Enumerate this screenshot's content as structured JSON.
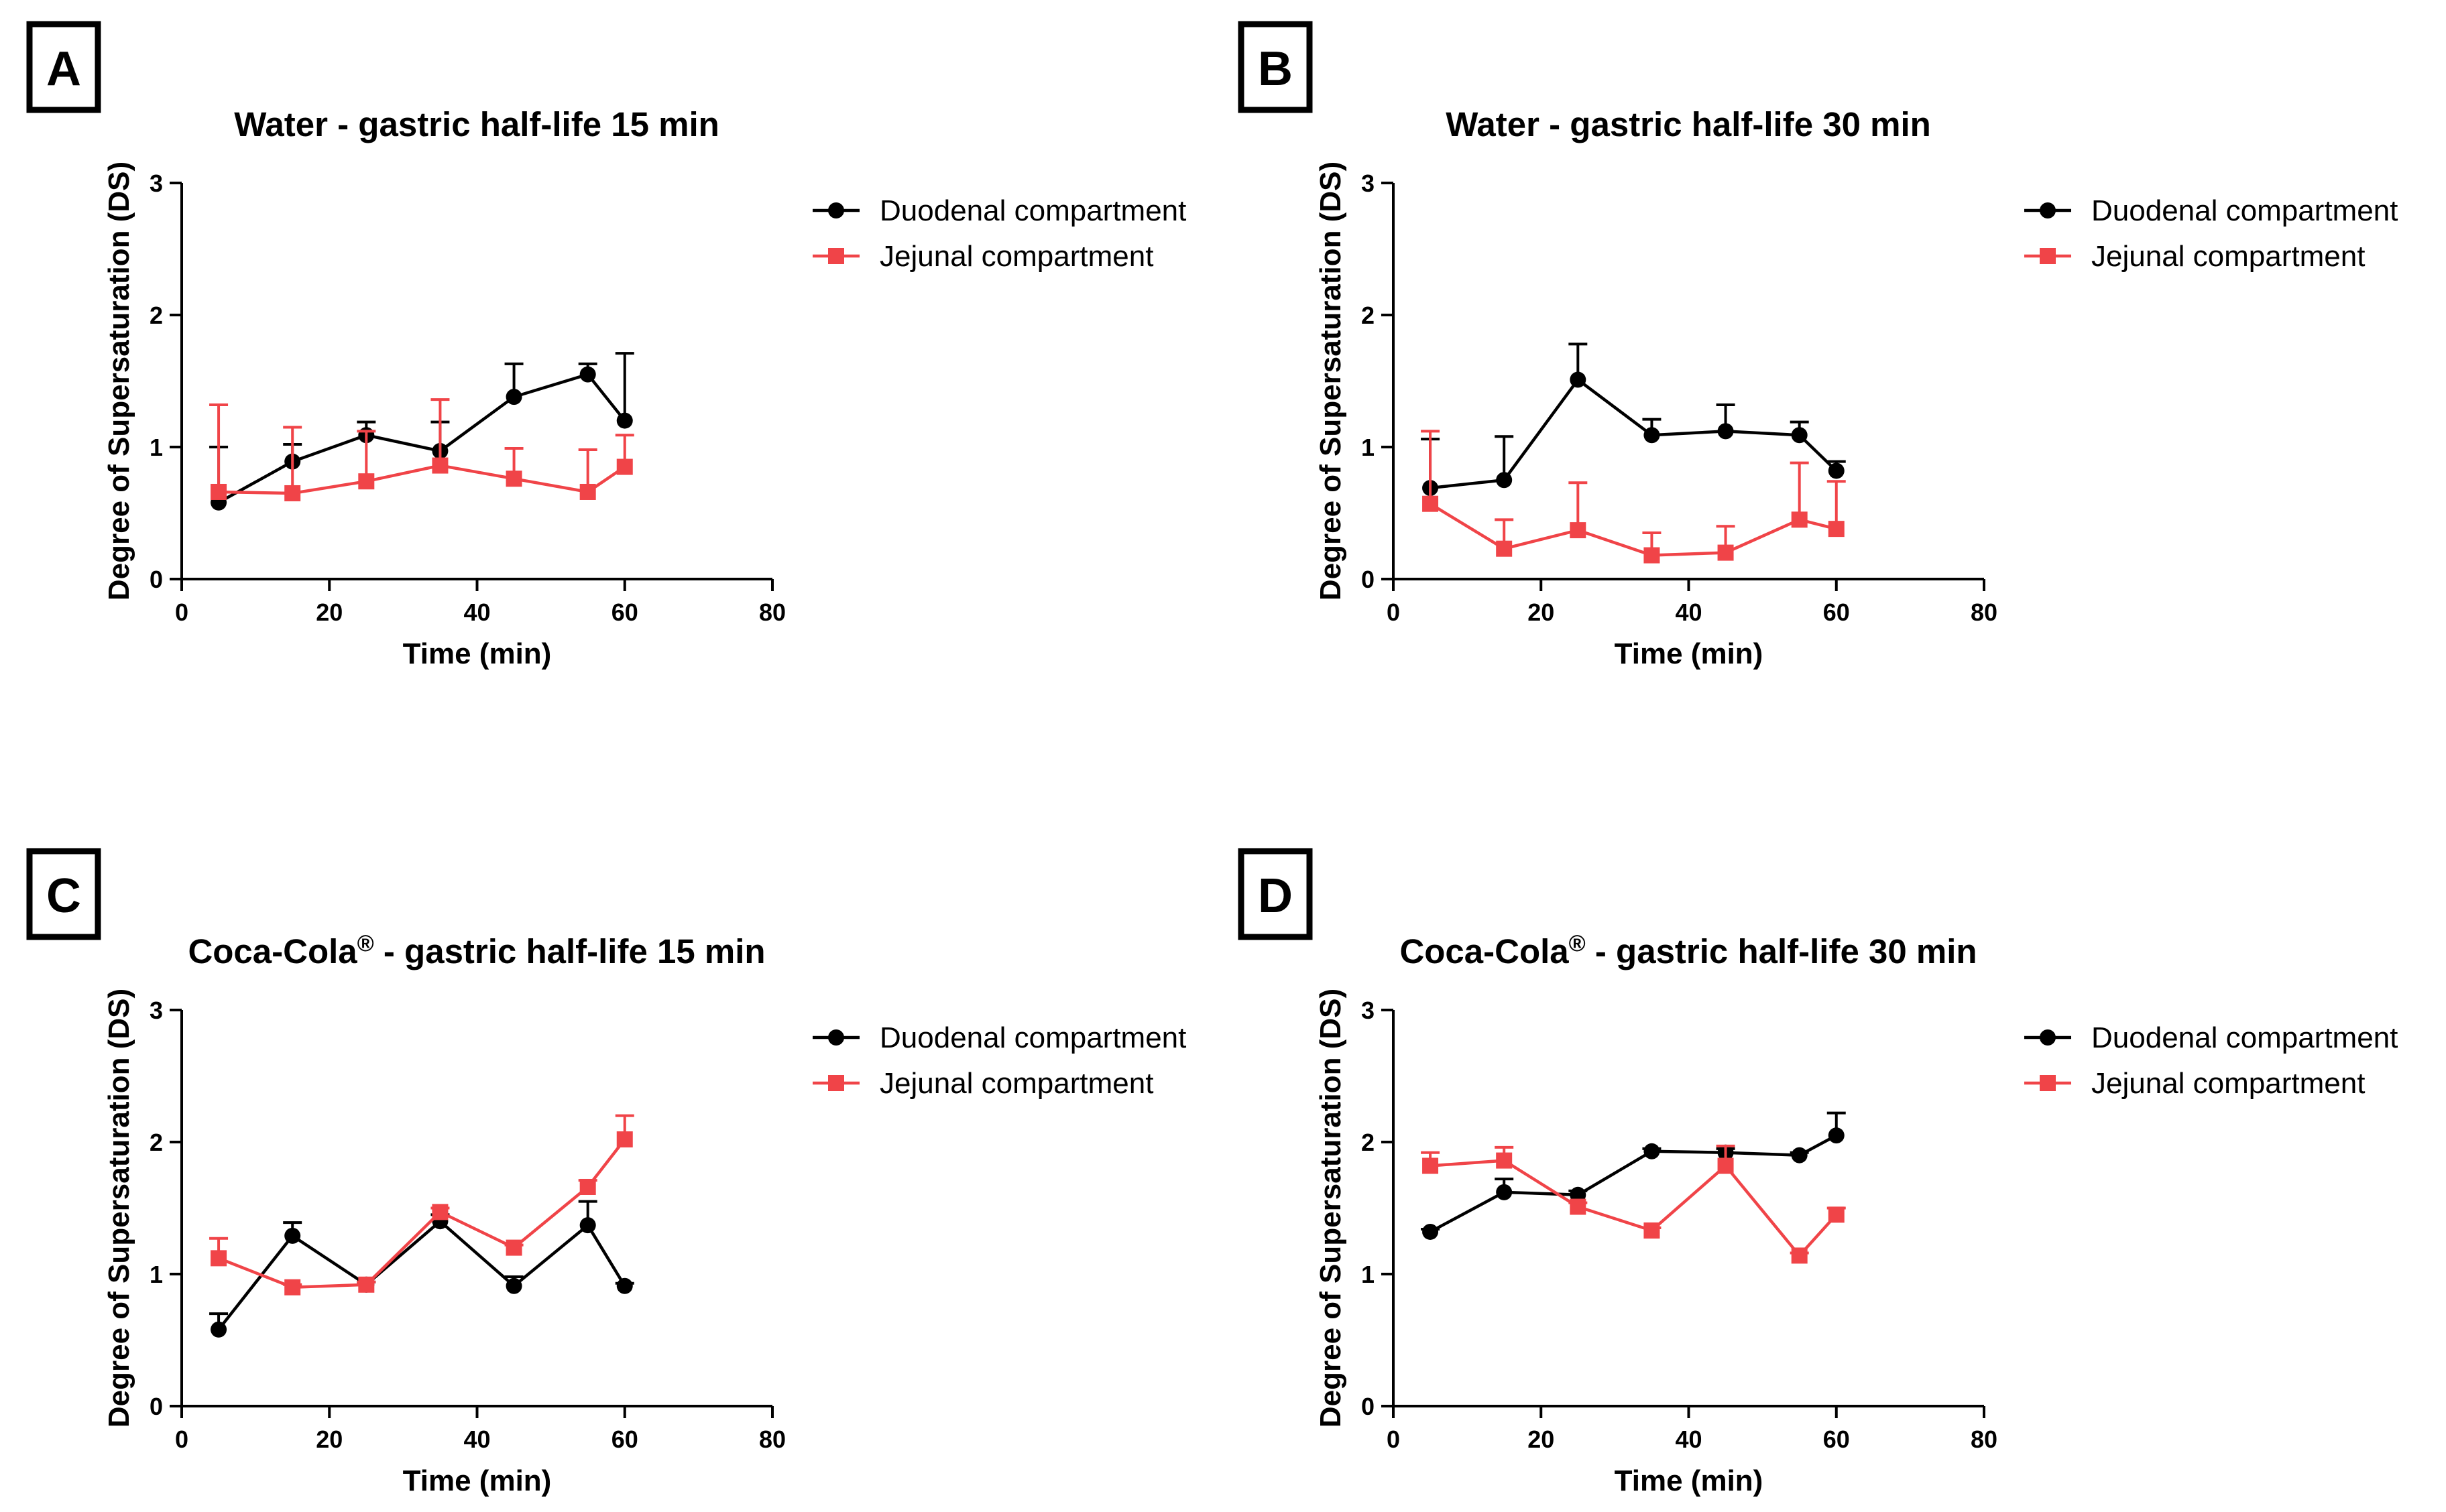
{
  "colors": {
    "duodenal": "#000000",
    "jejunal": "#f04448",
    "axis": "#000000",
    "background": "#ffffff"
  },
  "chart_data": [
    {
      "panel": "A",
      "type": "line",
      "title": "Water - gastric half-life 15 min",
      "xlabel": "Time (min)",
      "ylabel": "Degree of Supersaturation (DS)",
      "xlim": [
        0,
        80
      ],
      "ylim": [
        0,
        3
      ],
      "xticks": [
        0,
        20,
        40,
        60,
        80
      ],
      "yticks": [
        0,
        1,
        2,
        3
      ],
      "legend": "right",
      "series": [
        {
          "name": "Duodenal compartment",
          "marker": "circle",
          "color": "#000000",
          "x": [
            5,
            15,
            25,
            35,
            45,
            55,
            60
          ],
          "y": [
            0.58,
            0.89,
            1.09,
            0.97,
            1.38,
            1.55,
            1.2
          ],
          "err": [
            0.42,
            0.13,
            0.1,
            0.22,
            0.25,
            0.08,
            0.51
          ]
        },
        {
          "name": "Jejunal compartment",
          "marker": "square",
          "color": "#f04448",
          "x": [
            5,
            15,
            25,
            35,
            45,
            55,
            60
          ],
          "y": [
            0.66,
            0.65,
            0.74,
            0.86,
            0.76,
            0.66,
            0.85
          ],
          "err": [
            0.66,
            0.5,
            0.38,
            0.5,
            0.23,
            0.32,
            0.24
          ]
        }
      ]
    },
    {
      "panel": "B",
      "type": "line",
      "title": "Water - gastric half-life 30 min",
      "xlabel": "Time (min)",
      "ylabel": "Degree of Supersaturation (DS)",
      "xlim": [
        0,
        80
      ],
      "ylim": [
        0,
        3
      ],
      "xticks": [
        0,
        20,
        40,
        60,
        80
      ],
      "yticks": [
        0,
        1,
        2,
        3
      ],
      "legend": "right",
      "series": [
        {
          "name": "Duodenal compartment",
          "marker": "circle",
          "color": "#000000",
          "x": [
            5,
            15,
            25,
            35,
            45,
            55,
            60
          ],
          "y": [
            0.69,
            0.75,
            1.51,
            1.09,
            1.12,
            1.09,
            0.82
          ],
          "err": [
            0.37,
            0.33,
            0.27,
            0.12,
            0.2,
            0.1,
            0.07
          ]
        },
        {
          "name": "Jejunal compartment",
          "marker": "square",
          "color": "#f04448",
          "x": [
            5,
            15,
            25,
            35,
            45,
            55,
            60
          ],
          "y": [
            0.57,
            0.23,
            0.37,
            0.18,
            0.2,
            0.45,
            0.38
          ],
          "err": [
            0.55,
            0.22,
            0.36,
            0.17,
            0.2,
            0.43,
            0.36
          ]
        }
      ]
    },
    {
      "panel": "C",
      "type": "line",
      "title": "Coca-Cola® - gastric half-life 15 min",
      "xlabel": "Time (min)",
      "ylabel": "Degree of Supersaturation (DS)",
      "xlim": [
        0,
        80
      ],
      "ylim": [
        0,
        3
      ],
      "xticks": [
        0,
        20,
        40,
        60,
        80
      ],
      "yticks": [
        0,
        1,
        2,
        3
      ],
      "legend": "right",
      "series": [
        {
          "name": "Duodenal compartment",
          "marker": "circle",
          "color": "#000000",
          "x": [
            5,
            15,
            25,
            35,
            45,
            55,
            60
          ],
          "y": [
            0.58,
            1.29,
            0.92,
            1.4,
            0.91,
            1.37,
            0.91
          ],
          "err": [
            0.12,
            0.1,
            0.02,
            0.05,
            0.07,
            0.18,
            0.02
          ]
        },
        {
          "name": "Jejunal compartment",
          "marker": "square",
          "color": "#f04448",
          "x": [
            5,
            15,
            25,
            35,
            45,
            55,
            60
          ],
          "y": [
            1.12,
            0.9,
            0.92,
            1.47,
            1.2,
            1.66,
            2.02
          ],
          "err": [
            0.15,
            0.02,
            0.02,
            0.03,
            0.02,
            0.05,
            0.18
          ]
        }
      ]
    },
    {
      "panel": "D",
      "type": "line",
      "title": "Coca-Cola® - gastric half-life 30 min",
      "xlabel": "Time (min)",
      "ylabel": "Degree of Supersaturation (DS)",
      "xlim": [
        0,
        80
      ],
      "ylim": [
        0,
        3
      ],
      "xticks": [
        0,
        20,
        40,
        60,
        80
      ],
      "yticks": [
        0,
        1,
        2,
        3
      ],
      "legend": "right",
      "series": [
        {
          "name": "Duodenal compartment",
          "marker": "circle",
          "color": "#000000",
          "x": [
            5,
            15,
            25,
            35,
            45,
            55,
            60
          ],
          "y": [
            1.32,
            1.62,
            1.6,
            1.93,
            1.92,
            1.9,
            2.05
          ],
          "err": [
            0.02,
            0.1,
            0.03,
            0.02,
            0.03,
            0.02,
            0.17
          ]
        },
        {
          "name": "Jejunal compartment",
          "marker": "square",
          "color": "#f04448",
          "x": [
            5,
            15,
            25,
            35,
            45,
            55,
            60
          ],
          "y": [
            1.82,
            1.86,
            1.51,
            1.33,
            1.82,
            1.14,
            1.45
          ],
          "err": [
            0.1,
            0.1,
            0.03,
            0.02,
            0.15,
            0.02,
            0.05
          ]
        }
      ]
    }
  ]
}
